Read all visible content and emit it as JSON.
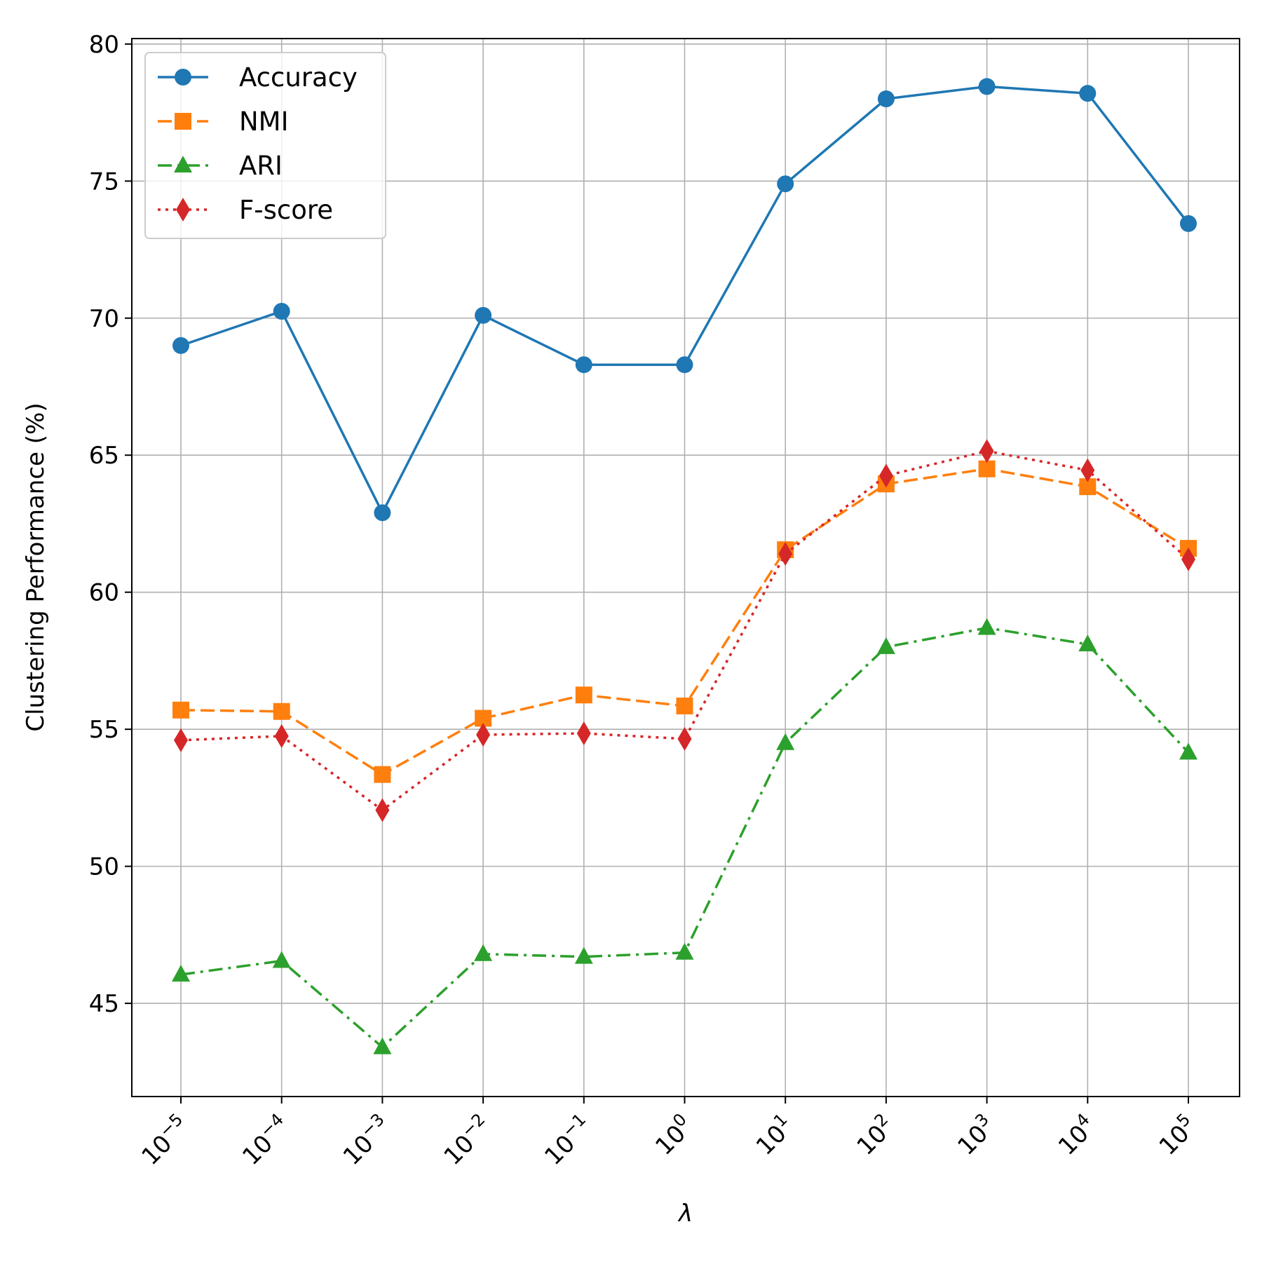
{
  "chart_data": {
    "type": "line",
    "title": "",
    "xlabel": "λ",
    "ylabel": "Clustering Performance (%)",
    "x_tick_labels": [
      {
        "base": "10",
        "exp": "−5"
      },
      {
        "base": "10",
        "exp": "−4"
      },
      {
        "base": "10",
        "exp": "−3"
      },
      {
        "base": "10",
        "exp": "−2"
      },
      {
        "base": "10",
        "exp": "−1"
      },
      {
        "base": "10",
        "exp": "0"
      },
      {
        "base": "10",
        "exp": "1"
      },
      {
        "base": "10",
        "exp": "2"
      },
      {
        "base": "10",
        "exp": "3"
      },
      {
        "base": "10",
        "exp": "4"
      },
      {
        "base": "10",
        "exp": "5"
      }
    ],
    "x_exponents": [
      -5,
      -4,
      -3,
      -2,
      -1,
      0,
      1,
      2,
      3,
      4,
      5
    ],
    "y_ticks": [
      45,
      50,
      55,
      60,
      65,
      70,
      75,
      80
    ],
    "ylim": [
      41.6,
      80.2
    ],
    "grid": true,
    "legend_position": "top-left",
    "series": [
      {
        "name": "Accuracy",
        "color": "#1f77b4",
        "marker": "circle",
        "line_style": "solid",
        "values": [
          69.0,
          70.25,
          62.9,
          70.1,
          68.3,
          68.3,
          74.9,
          78.0,
          78.45,
          78.2,
          73.45
        ]
      },
      {
        "name": "NMI",
        "color": "#ff7f0e",
        "marker": "square",
        "line_style": "dashed",
        "values": [
          55.7,
          55.65,
          53.35,
          55.4,
          56.25,
          55.85,
          61.55,
          63.95,
          64.5,
          63.85,
          61.6
        ]
      },
      {
        "name": "ARI",
        "color": "#2ca02c",
        "marker": "triangle",
        "line_style": "dashdot",
        "values": [
          46.05,
          46.55,
          43.4,
          46.8,
          46.7,
          46.85,
          54.5,
          58.0,
          58.7,
          58.1,
          54.15
        ]
      },
      {
        "name": "F-score",
        "color": "#d62728",
        "marker": "diamond",
        "line_style": "dotted",
        "values": [
          54.6,
          54.75,
          52.05,
          54.8,
          54.85,
          54.65,
          61.4,
          64.25,
          65.15,
          64.45,
          61.2
        ]
      }
    ]
  }
}
